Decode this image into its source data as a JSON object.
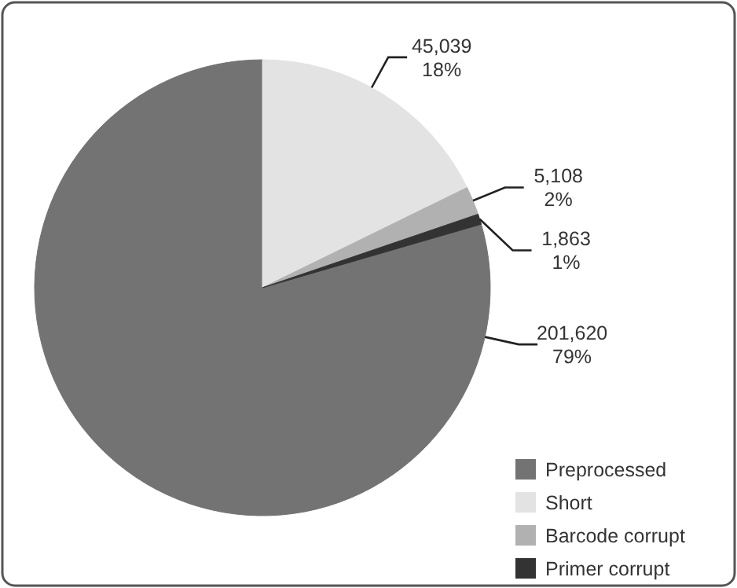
{
  "chart_data": {
    "type": "pie",
    "categories": [
      "Preprocessed",
      "Short",
      "Barcode corrupt",
      "Primer corrupt"
    ],
    "values": [
      201620,
      45039,
      5108,
      1863
    ],
    "colors": [
      "#737373",
      "#e3e3e3",
      "#b1b1b1",
      "#333333"
    ],
    "value_labels": [
      "201,620\n79%",
      "45,039\n18%",
      "5,108\n2%",
      "1,863\n1%"
    ],
    "legend": "bottom right"
  }
}
